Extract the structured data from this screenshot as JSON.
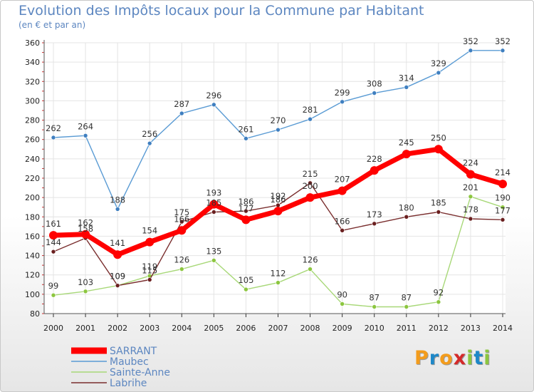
{
  "header": {
    "title": "Evolution des Impôts locaux pour la Commune par Habitant",
    "subtitle": "(en € et par an)"
  },
  "logo": {
    "letters": [
      "P",
      "r",
      "o",
      "x",
      "i",
      "t",
      "i"
    ],
    "colors": [
      "#f39c1c",
      "#1e88c8",
      "#f39c1c",
      "#d42a2a",
      "#8cc63f",
      "#1e88c8",
      "#8cc63f"
    ]
  },
  "chart_data": {
    "type": "line",
    "title": "Evolution des Impôts locaux pour la Commune par Habitant",
    "subtitle": "(en € et par an)",
    "xlabel": "",
    "ylabel": "",
    "x": [
      "2000",
      "2001",
      "2002",
      "2003",
      "2004",
      "2005",
      "2006",
      "2007",
      "2008",
      "2009",
      "2010",
      "2011",
      "2012",
      "2013",
      "2014"
    ],
    "ylim": [
      80,
      360
    ],
    "yticks": [
      80,
      100,
      120,
      140,
      160,
      180,
      200,
      220,
      240,
      260,
      280,
      300,
      320,
      340,
      360
    ],
    "grid": true,
    "legend_position": "bottom-left",
    "series": [
      {
        "name": "Maubec",
        "color": "#5a9bd4",
        "marker": "#3f7fc0",
        "values": [
          262,
          264,
          188,
          256,
          287,
          296,
          261,
          270,
          281,
          299,
          308,
          314,
          329,
          352,
          352
        ]
      },
      {
        "name": "Sainte-Anne",
        "color": "#a8d878",
        "marker": "#8cc63f",
        "values": [
          99,
          103,
          109,
          119,
          126,
          135,
          105,
          112,
          126,
          90,
          87,
          87,
          92,
          201,
          190
        ]
      },
      {
        "name": "Labrihe",
        "color": "#7a2e2e",
        "marker": "#6a1f1f",
        "values": [
          144,
          158,
          109,
          115,
          175,
          185,
          186,
          192,
          215,
          166,
          173,
          180,
          185,
          178,
          177
        ]
      },
      {
        "name": "SARRANT",
        "color": "#ff0000",
        "marker": "#ff0000",
        "values": [
          161,
          162,
          141,
          154,
          166,
          193,
          177,
          186,
          200,
          207,
          228,
          245,
          250,
          224,
          214
        ]
      }
    ],
    "legend_order": [
      "SARRANT",
      "Maubec",
      "Sainte-Anne",
      "Labrihe"
    ]
  }
}
